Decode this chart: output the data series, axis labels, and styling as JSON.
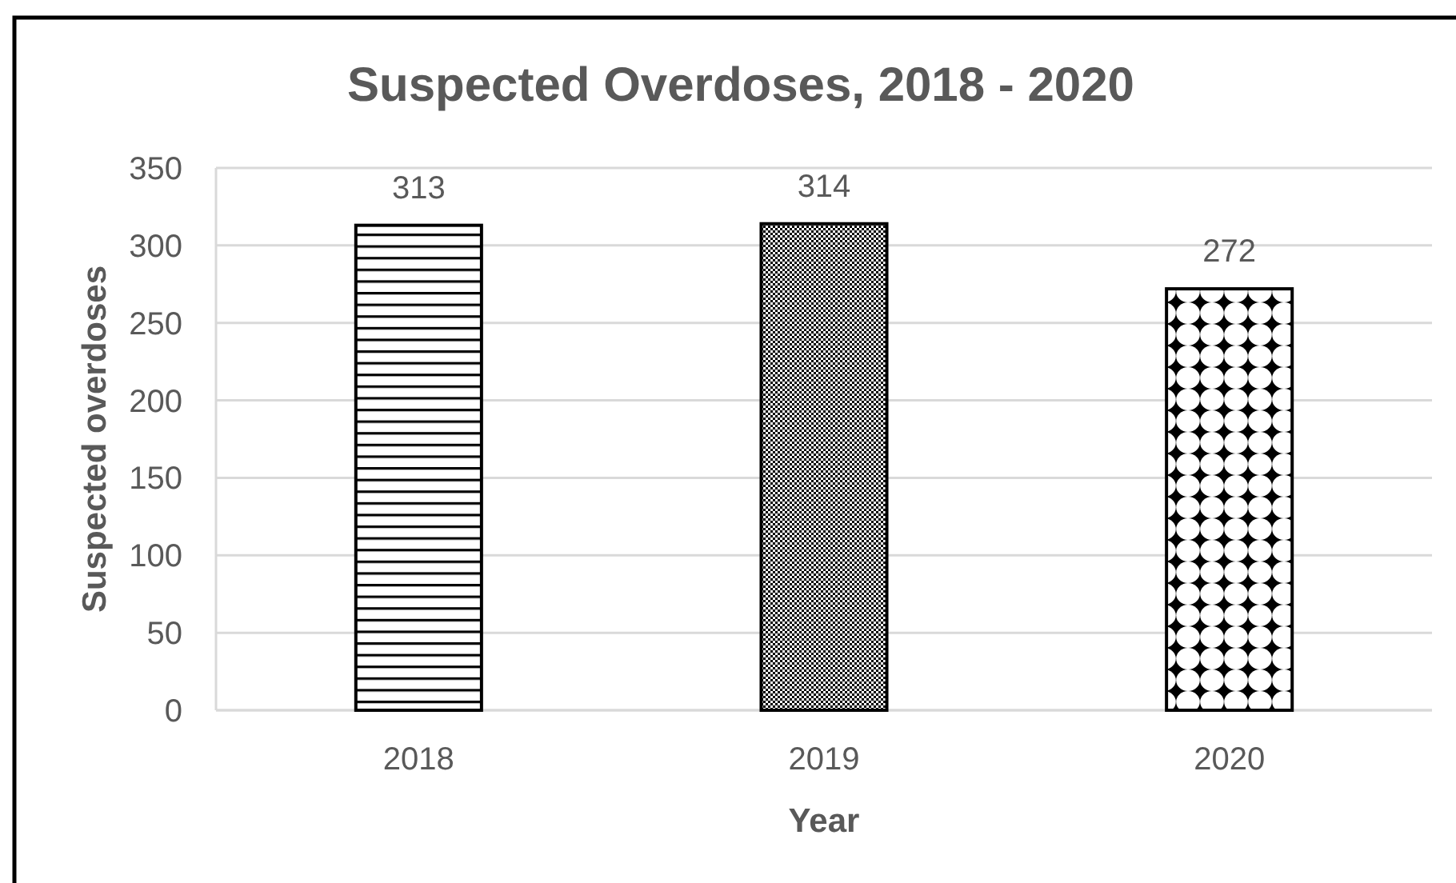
{
  "chart_data": {
    "type": "bar",
    "title": "Suspected Overdoses, 2018 - 2020",
    "xlabel": "Year",
    "ylabel": "Suspected overdoses",
    "categories": [
      "2018",
      "2019",
      "2020"
    ],
    "values": [
      313,
      314,
      272
    ],
    "colors": [
      "#000000",
      "#000000",
      "#000000"
    ],
    "ylim": [
      0,
      350
    ],
    "yticks": [
      0,
      50,
      100,
      150,
      200,
      250,
      300,
      350
    ],
    "grid": "y",
    "data_labels": true
  }
}
